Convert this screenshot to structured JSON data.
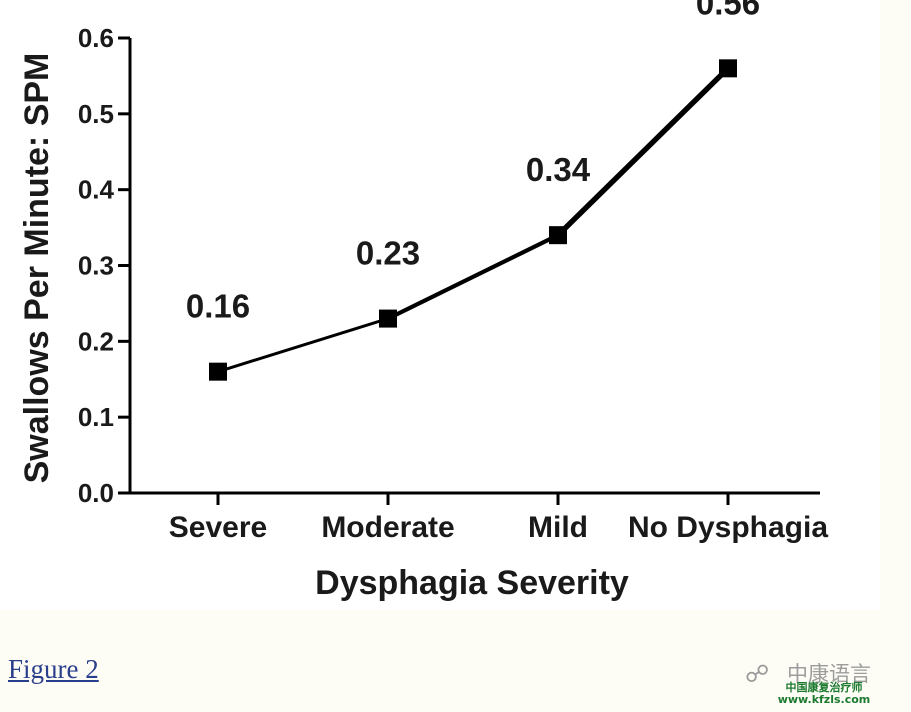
{
  "chart_data": {
    "type": "line",
    "categories": [
      "Severe",
      "Moderate",
      "Mild",
      "No Dysphagia"
    ],
    "values": [
      0.16,
      0.23,
      0.34,
      0.56
    ],
    "data_labels": [
      "0.16",
      "0.23",
      "0.34",
      "0.56"
    ],
    "xlabel": "Dysphagia Severity",
    "ylabel": "Swallows Per Minute:  SPM",
    "ylim": [
      0,
      0.6
    ],
    "yticks": [
      0.0,
      0.1,
      0.2,
      0.3,
      0.4,
      0.5,
      0.6
    ],
    "ytick_labels": [
      "0.0",
      "0.1",
      "0.2",
      "0.3",
      "0.4",
      "0.5",
      "0.6"
    ],
    "marker": "square",
    "grid": false,
    "line_color": "#000000"
  },
  "caption": {
    "link_text": "Figure 2"
  },
  "watermark": {
    "icon": "wechat-icon",
    "title": "中康语言",
    "subtitle_line1": "中国康复治疗师",
    "subtitle_line2": "www.kfzls.com"
  }
}
